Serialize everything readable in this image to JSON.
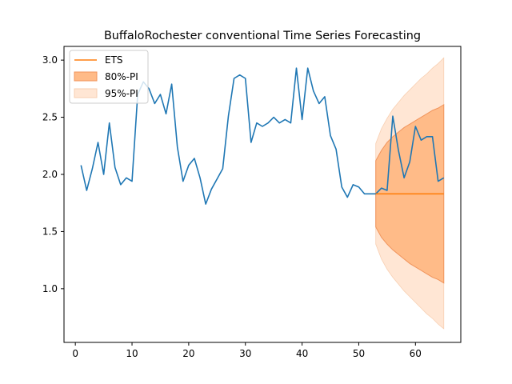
{
  "chart_data": {
    "type": "line",
    "title": "BuffaloRochester conventional Time Series Forecasting",
    "xlabel": "",
    "ylabel": "",
    "xlim": [
      -2,
      68
    ],
    "ylim": [
      0.53,
      3.12
    ],
    "xticks": [
      0,
      10,
      20,
      30,
      40,
      50,
      60
    ],
    "yticks": [
      1.0,
      1.5,
      2.0,
      2.5,
      3.0
    ],
    "ytick_labels": [
      "1.0",
      "1.5",
      "2.0",
      "2.5",
      "3.0"
    ],
    "grid": false,
    "legend_position": "top-left",
    "colors": {
      "actual": "#1f77b4",
      "ets": "#ff7f0e",
      "pi80_fill": "#ffbb88",
      "pi80_edge": "#f0945c",
      "pi95_fill": "#ffe6d4"
    },
    "legend": [
      {
        "label": "ETS",
        "kind": "line",
        "key": "ets"
      },
      {
        "label": "80%-PI",
        "kind": "band",
        "key": "pi80"
      },
      {
        "label": "95%-PI",
        "kind": "band",
        "key": "pi95"
      }
    ],
    "series": [
      {
        "key": "actual",
        "x": [
          1,
          2,
          3,
          4,
          5,
          6,
          7,
          8,
          9,
          10,
          11,
          12,
          13,
          14,
          15,
          16,
          17,
          18,
          19,
          20,
          21,
          22,
          23,
          24,
          25,
          26,
          27,
          28,
          29,
          30,
          31,
          32,
          33,
          34,
          35,
          36,
          37,
          38,
          39,
          40,
          41,
          42,
          43,
          44,
          45,
          46,
          47,
          48,
          49,
          50,
          51,
          52,
          53,
          54,
          55,
          56,
          57,
          58,
          59,
          60,
          61,
          62,
          63,
          64,
          65
        ],
        "y": [
          2.08,
          1.86,
          2.05,
          2.28,
          2.0,
          2.45,
          2.06,
          1.91,
          1.97,
          1.94,
          2.7,
          2.81,
          2.75,
          2.62,
          2.7,
          2.53,
          2.79,
          2.24,
          1.94,
          2.08,
          2.14,
          1.97,
          1.74,
          1.87,
          1.96,
          2.05,
          2.51,
          2.84,
          2.87,
          2.84,
          2.28,
          2.45,
          2.42,
          2.45,
          2.5,
          2.45,
          2.48,
          2.45,
          2.93,
          2.48,
          2.93,
          2.73,
          2.62,
          2.68,
          2.34,
          2.22,
          1.89,
          1.8,
          1.91,
          1.89,
          1.83,
          1.83,
          1.83,
          1.88,
          1.86,
          2.51,
          2.21,
          1.97,
          2.11,
          2.42,
          2.3,
          2.33,
          2.33,
          1.94,
          1.97
        ]
      },
      {
        "key": "ets",
        "name": "ETS",
        "x": [
          53,
          65
        ],
        "y": [
          1.83,
          1.83
        ]
      }
    ],
    "bands": [
      {
        "key": "pi95",
        "name": "95%-PI",
        "x": [
          53,
          54,
          55,
          56,
          57,
          58,
          59,
          60,
          61,
          62,
          63,
          64,
          65
        ],
        "lower": [
          1.39,
          1.26,
          1.17,
          1.1,
          1.04,
          0.98,
          0.93,
          0.88,
          0.83,
          0.78,
          0.74,
          0.69,
          0.65
        ],
        "upper": [
          2.27,
          2.4,
          2.49,
          2.57,
          2.63,
          2.69,
          2.74,
          2.79,
          2.84,
          2.88,
          2.93,
          2.97,
          3.02
        ]
      },
      {
        "key": "pi80",
        "name": "80%-PI",
        "x": [
          53,
          54,
          55,
          56,
          57,
          58,
          59,
          60,
          61,
          62,
          63,
          64,
          65
        ],
        "lower": [
          1.54,
          1.45,
          1.39,
          1.34,
          1.3,
          1.26,
          1.22,
          1.19,
          1.16,
          1.13,
          1.1,
          1.08,
          1.05
        ],
        "upper": [
          2.12,
          2.21,
          2.28,
          2.33,
          2.37,
          2.41,
          2.44,
          2.47,
          2.5,
          2.53,
          2.56,
          2.58,
          2.61
        ]
      }
    ]
  }
}
